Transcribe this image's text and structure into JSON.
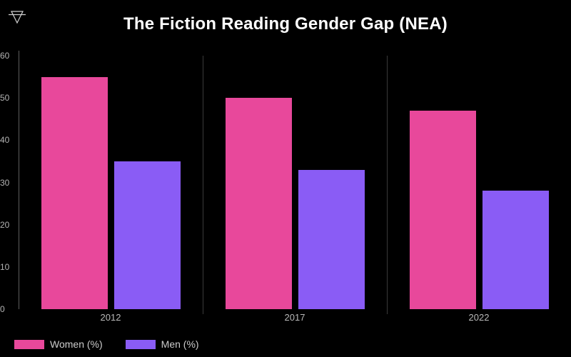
{
  "header": {
    "icon": "filter-funnel-icon",
    "title": "The Fiction Reading Gender Gap (NEA)"
  },
  "colors": {
    "background": "#000000",
    "title_text": "#ffffff",
    "women_bar": "#e8489b",
    "men_bar": "#8a5cf5",
    "axis_line": "#5e5e5e",
    "separator_line": "#3a3a3a",
    "tick_text": "#b3b3b3",
    "x_label_text": "#b9b9b9",
    "legend_text": "#cccccc",
    "icon_stroke": "#cfcfcf"
  },
  "chart_data": {
    "type": "bar",
    "title": "The Fiction Reading Gender Gap (NEA)",
    "categories": [
      "2012",
      "2017",
      "2022"
    ],
    "series": [
      {
        "name": "Women (%)",
        "color": "#e8489b",
        "values": [
          55,
          50,
          47
        ]
      },
      {
        "name": "Men (%)",
        "color": "#8a5cf5",
        "values": [
          35,
          33,
          28
        ]
      }
    ],
    "ylim": [
      0,
      60
    ],
    "yticks": [
      0,
      10,
      20,
      30,
      40,
      50,
      60
    ],
    "grid": false,
    "group_separators": true,
    "legend_position": "bottom-left"
  },
  "legend": {
    "items": [
      {
        "label": "Women (%)"
      },
      {
        "label": "Men (%)"
      }
    ]
  }
}
